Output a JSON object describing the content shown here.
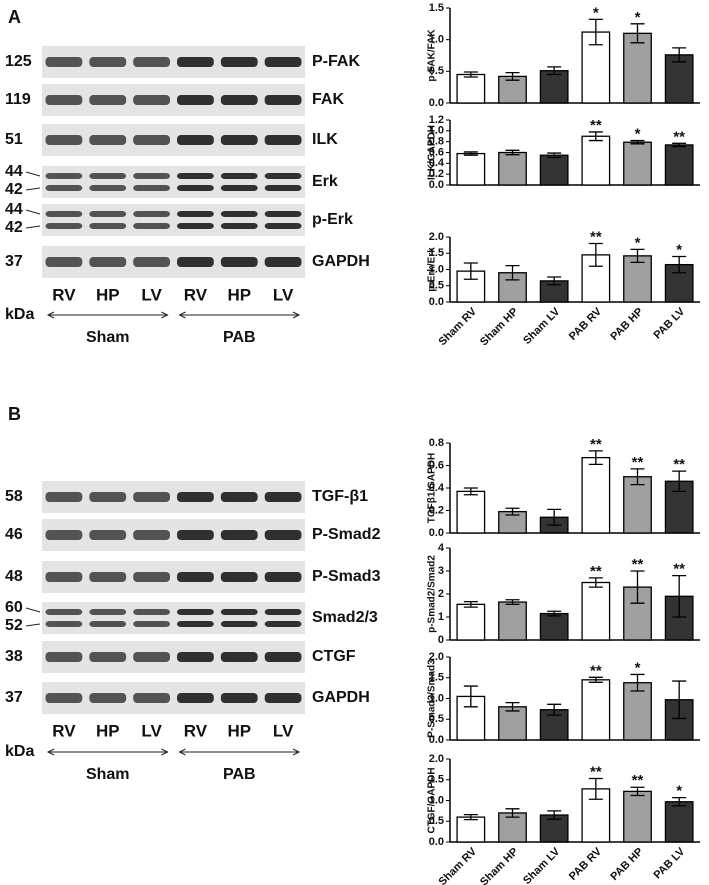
{
  "figure": {
    "panels": [
      {
        "label": "A",
        "unit": "kDa",
        "lanes": [
          "RV",
          "HP",
          "LV",
          "RV",
          "HP",
          "LV"
        ],
        "groups": [
          "Sham",
          "PAB"
        ],
        "blots": [
          {
            "mw": [
              "125"
            ],
            "name": "P-FAK"
          },
          {
            "mw": [
              "119"
            ],
            "name": "FAK"
          },
          {
            "mw": [
              "51"
            ],
            "name": "ILK"
          },
          {
            "mw": [
              "44",
              "42"
            ],
            "name": "Erk"
          },
          {
            "mw": [
              "44",
              "42"
            ],
            "name": "p-Erk"
          },
          {
            "mw": [
              "37"
            ],
            "name": "GAPDH"
          }
        ]
      },
      {
        "label": "B",
        "unit": "kDa",
        "lanes": [
          "RV",
          "HP",
          "LV",
          "RV",
          "HP",
          "LV"
        ],
        "groups": [
          "Sham",
          "PAB"
        ],
        "blots": [
          {
            "mw": [
              "58"
            ],
            "name": "TGF-β1"
          },
          {
            "mw": [
              "46"
            ],
            "name": "P-Smad2"
          },
          {
            "mw": [
              "48"
            ],
            "name": "P-Smad3"
          },
          {
            "mw": [
              "60",
              "52"
            ],
            "name": "Smad2/3"
          },
          {
            "mw": [
              "38"
            ],
            "name": "CTGF"
          },
          {
            "mw": [
              "37"
            ],
            "name": "GAPDH"
          }
        ]
      }
    ]
  },
  "chart_data": [
    {
      "type": "bar",
      "y_label": "p-FAK/FAK",
      "categories": [
        null,
        null,
        null,
        null,
        null,
        null
      ],
      "colors": [
        "#ffffff",
        "#a0a0a0",
        "#333333",
        "#ffffff",
        "#a0a0a0",
        "#333333"
      ],
      "values": [
        0.45,
        0.42,
        0.51,
        1.12,
        1.1,
        0.76
      ],
      "errors": [
        0.04,
        0.06,
        0.06,
        0.2,
        0.15,
        0.11
      ],
      "annotations": [
        null,
        null,
        null,
        "*",
        "*",
        null
      ],
      "ylim": [
        0,
        1.5
      ],
      "yticks": [
        {
          "value": 0,
          "label": "0.0"
        },
        0.5,
        {
          "value": 1,
          "label": "1.0"
        },
        1.5
      ]
    },
    {
      "type": "bar",
      "y_label": "ILK/GAPDH",
      "categories": [
        null,
        null,
        null,
        null,
        null,
        null
      ],
      "colors": [
        "#ffffff",
        "#a0a0a0",
        "#333333",
        "#ffffff",
        "#a0a0a0",
        "#333333"
      ],
      "values": [
        0.58,
        0.6,
        0.55,
        0.9,
        0.79,
        0.74
      ],
      "errors": [
        0.03,
        0.04,
        0.04,
        0.08,
        0.03,
        0.03
      ],
      "annotations": [
        null,
        null,
        null,
        "**",
        "*",
        "**"
      ],
      "ylim": [
        0,
        1.2
      ],
      "yticks": [
        {
          "value": 0,
          "label": "0.0"
        },
        0.2,
        0.4,
        0.6,
        0.8,
        {
          "value": 1,
          "label": "1.0"
        },
        1.2
      ]
    },
    {
      "type": "bar",
      "y_label": "p-Erk/Erk",
      "categories": [
        "Sham RV",
        "Sham HP",
        "Sham LV",
        "PAB RV",
        "PAB HP",
        "PAB LV"
      ],
      "colors": [
        "#ffffff",
        "#a0a0a0",
        "#333333",
        "#ffffff",
        "#a0a0a0",
        "#333333"
      ],
      "values": [
        0.95,
        0.9,
        0.65,
        1.45,
        1.42,
        1.15
      ],
      "errors": [
        0.25,
        0.22,
        0.12,
        0.35,
        0.2,
        0.25
      ],
      "annotations": [
        null,
        null,
        null,
        "**",
        "*",
        "*"
      ],
      "ylim": [
        0,
        2
      ],
      "yticks": [
        {
          "value": 0,
          "label": "0.0"
        },
        0.5,
        {
          "value": 1,
          "label": "1.0"
        },
        1.5,
        {
          "value": 2,
          "label": "2.0"
        }
      ]
    },
    {
      "type": "bar",
      "y_label": "TGFβ1/GAPDH",
      "categories": [
        null,
        null,
        null,
        null,
        null,
        null
      ],
      "colors": [
        "#ffffff",
        "#a0a0a0",
        "#333333",
        "#ffffff",
        "#a0a0a0",
        "#333333"
      ],
      "values": [
        0.37,
        0.19,
        0.14,
        0.67,
        0.5,
        0.46
      ],
      "errors": [
        0.03,
        0.03,
        0.07,
        0.06,
        0.07,
        0.09
      ],
      "annotations": [
        null,
        null,
        null,
        "**",
        "**",
        "**"
      ],
      "ylim": [
        0,
        0.8
      ],
      "yticks": [
        {
          "value": 0,
          "label": "0.0"
        },
        0.2,
        0.4,
        0.6,
        0.8
      ]
    },
    {
      "type": "bar",
      "y_label": "p-Smad2/Smad2",
      "categories": [
        null,
        null,
        null,
        null,
        null,
        null
      ],
      "colors": [
        "#ffffff",
        "#a0a0a0",
        "#333333",
        "#ffffff",
        "#a0a0a0",
        "#333333"
      ],
      "values": [
        1.55,
        1.65,
        1.15,
        2.5,
        2.3,
        1.9
      ],
      "errors": [
        0.12,
        0.1,
        0.1,
        0.2,
        0.7,
        0.9
      ],
      "annotations": [
        null,
        null,
        null,
        "**",
        "**",
        "**"
      ],
      "ylim": [
        0,
        4
      ],
      "yticks": [
        0,
        1,
        2,
        3,
        4
      ]
    },
    {
      "type": "bar",
      "y_label": "P-Smad3/Smad3",
      "categories": [
        null,
        null,
        null,
        null,
        null,
        null
      ],
      "colors": [
        "#ffffff",
        "#a0a0a0",
        "#333333",
        "#ffffff",
        "#a0a0a0",
        "#333333"
      ],
      "values": [
        1.05,
        0.8,
        0.73,
        1.45,
        1.38,
        0.97
      ],
      "errors": [
        0.25,
        0.1,
        0.13,
        0.06,
        0.2,
        0.45
      ],
      "annotations": [
        null,
        null,
        null,
        "**",
        "*",
        null
      ],
      "ylim": [
        0,
        2
      ],
      "yticks": [
        {
          "value": 0,
          "label": "0.0"
        },
        0.5,
        {
          "value": 1,
          "label": "1.0"
        },
        1.5,
        {
          "value": 2,
          "label": "2.0"
        }
      ]
    },
    {
      "type": "bar",
      "y_label": "CTGF/GAPDH",
      "categories": [
        "Sham RV",
        "Sham HP",
        "Sham LV",
        "PAB RV",
        "PAB HP",
        "PAB LV"
      ],
      "colors": [
        "#ffffff",
        "#a0a0a0",
        "#333333",
        "#ffffff",
        "#a0a0a0",
        "#333333"
      ],
      "values": [
        0.6,
        0.7,
        0.65,
        1.28,
        1.22,
        0.97
      ],
      "errors": [
        0.06,
        0.1,
        0.1,
        0.25,
        0.1,
        0.1
      ],
      "annotations": [
        null,
        null,
        null,
        "**",
        "**",
        "*"
      ],
      "ylim": [
        0,
        2
      ],
      "yticks": [
        {
          "value": 0,
          "label": "0.0"
        },
        0.5,
        {
          "value": 1,
          "label": "1.0"
        },
        1.5,
        {
          "value": 2,
          "label": "2.0"
        }
      ]
    }
  ]
}
